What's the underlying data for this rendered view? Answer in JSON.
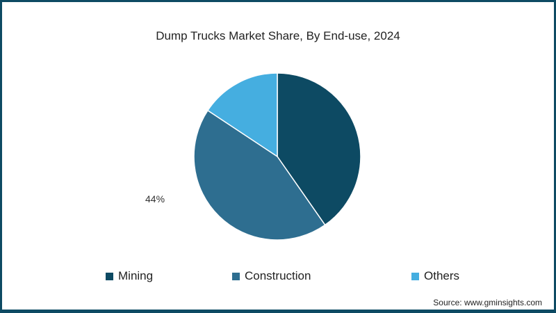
{
  "chart_data": {
    "type": "pie",
    "title": "Dump Trucks Market Share, By End-use, 2024",
    "categories": [
      "Mining",
      "Construction",
      "Others"
    ],
    "values": [
      40.3,
      44,
      15.7
    ],
    "colors": [
      "#0d4a63",
      "#2e6e90",
      "#45aee0"
    ],
    "data_labels": [
      {
        "category": "Construction",
        "text": "44%"
      }
    ],
    "legend_position": "bottom",
    "start_angle": "top, clockwise"
  },
  "title": "Dump Trucks Market Share, By End-use, 2024",
  "labels": {
    "construction": "44%"
  },
  "legend": [
    {
      "label": "Mining",
      "color": "#0d4a63"
    },
    {
      "label": "Construction",
      "color": "#2e6e90"
    },
    {
      "label": "Others",
      "color": "#45aee0"
    }
  ],
  "source": "Source: www.gminsights.com"
}
